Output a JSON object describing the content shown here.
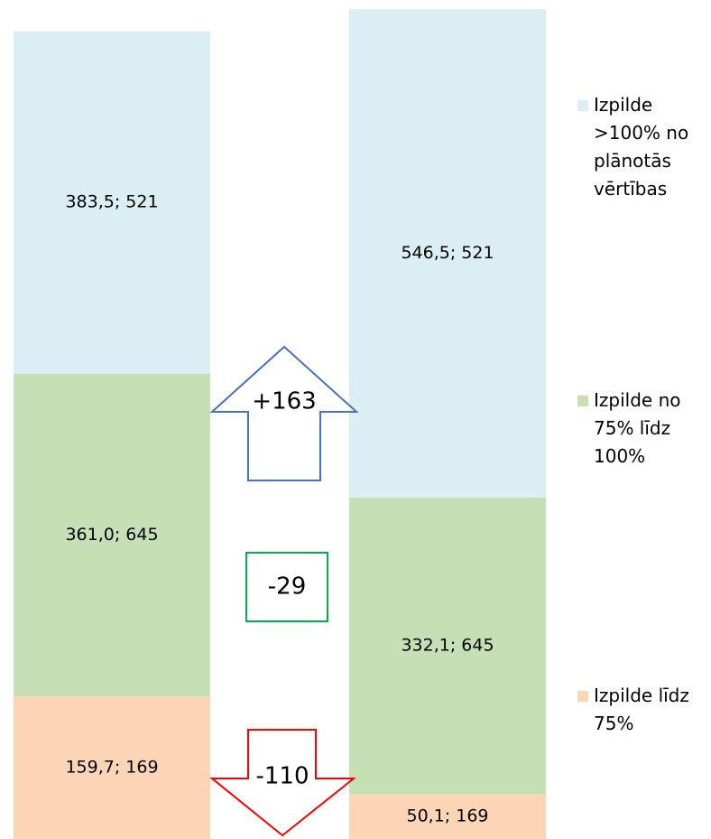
{
  "chart_data": {
    "type": "stacked_bar",
    "categories": [
      null,
      null
    ],
    "ylim": [
      0,
      939
    ],
    "series": [
      {
        "name": "Izpilde līdz 75%",
        "color": "#fbd5b5",
        "values": [
          159.7,
          50.1
        ],
        "value_labels": [
          "159,7; 169",
          "50,1; 169"
        ]
      },
      {
        "name": "Izpilde no 75% līdz 100%",
        "color": "#c5e0b4",
        "values": [
          361.0,
          332.1
        ],
        "value_labels": [
          "361,0; 645",
          "332,1; 645"
        ]
      },
      {
        "name": "Izpilde >100% no plānotās vērtības",
        "color": "#dbeef4",
        "values": [
          383.5,
          546.5
        ],
        "value_labels": [
          "383,5; 521",
          "546,5; 521"
        ]
      }
    ],
    "annotations": [
      "+163",
      "-29",
      "-110"
    ]
  }
}
